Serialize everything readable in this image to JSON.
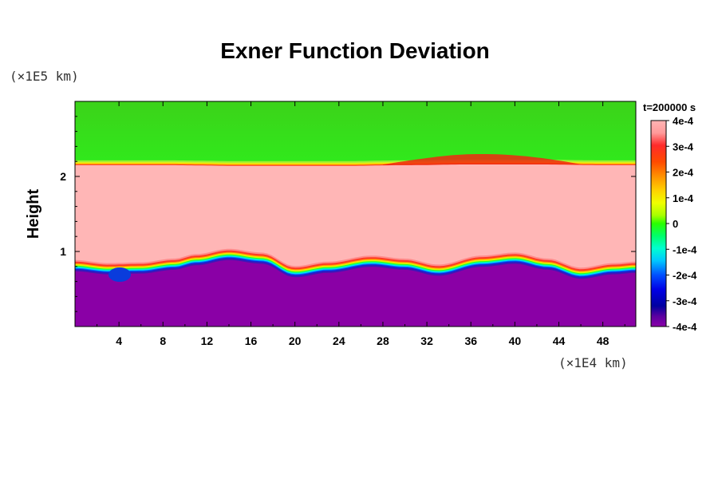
{
  "chart_data": {
    "type": "heatmap",
    "title": "Exner Function Deviation",
    "ylabel": "Height",
    "y_unit_label": "(×1E5 km)",
    "x_unit_label": "(×1E4 km)",
    "time_label": "t=200000 s",
    "x_range": [
      0,
      51
    ],
    "y_range": [
      0,
      3
    ],
    "x_ticks": [
      4,
      8,
      12,
      16,
      20,
      24,
      28,
      32,
      36,
      40,
      44,
      48
    ],
    "y_ticks": [
      1,
      2
    ],
    "colorbar": {
      "range": [
        -0.0004,
        0.0004
      ],
      "tick_labels": [
        "4e-4",
        "3e-4",
        "2e-4",
        "1e-4",
        "0",
        "-1e-4",
        "-2e-4",
        "-3e-4",
        "-4e-4"
      ]
    },
    "upper_interface": {
      "x": [
        0,
        8,
        16,
        24,
        30,
        36,
        42,
        48,
        51
      ],
      "height": [
        2.15,
        2.15,
        2.14,
        2.14,
        2.15,
        2.16,
        2.16,
        2.15,
        2.15
      ]
    },
    "lower_interface": {
      "x": [
        0,
        3,
        6,
        9,
        11,
        14,
        17,
        20,
        23,
        27,
        30,
        33,
        37,
        40,
        43,
        46,
        49,
        51
      ],
      "height": [
        0.8,
        0.76,
        0.77,
        0.82,
        0.88,
        0.95,
        0.9,
        0.72,
        0.78,
        0.86,
        0.82,
        0.74,
        0.86,
        0.9,
        0.82,
        0.7,
        0.76,
        0.78
      ]
    },
    "values": {
      "top_region": 3e-05,
      "middle_region": 0.0004,
      "bottom_region": -0.0004
    }
  }
}
